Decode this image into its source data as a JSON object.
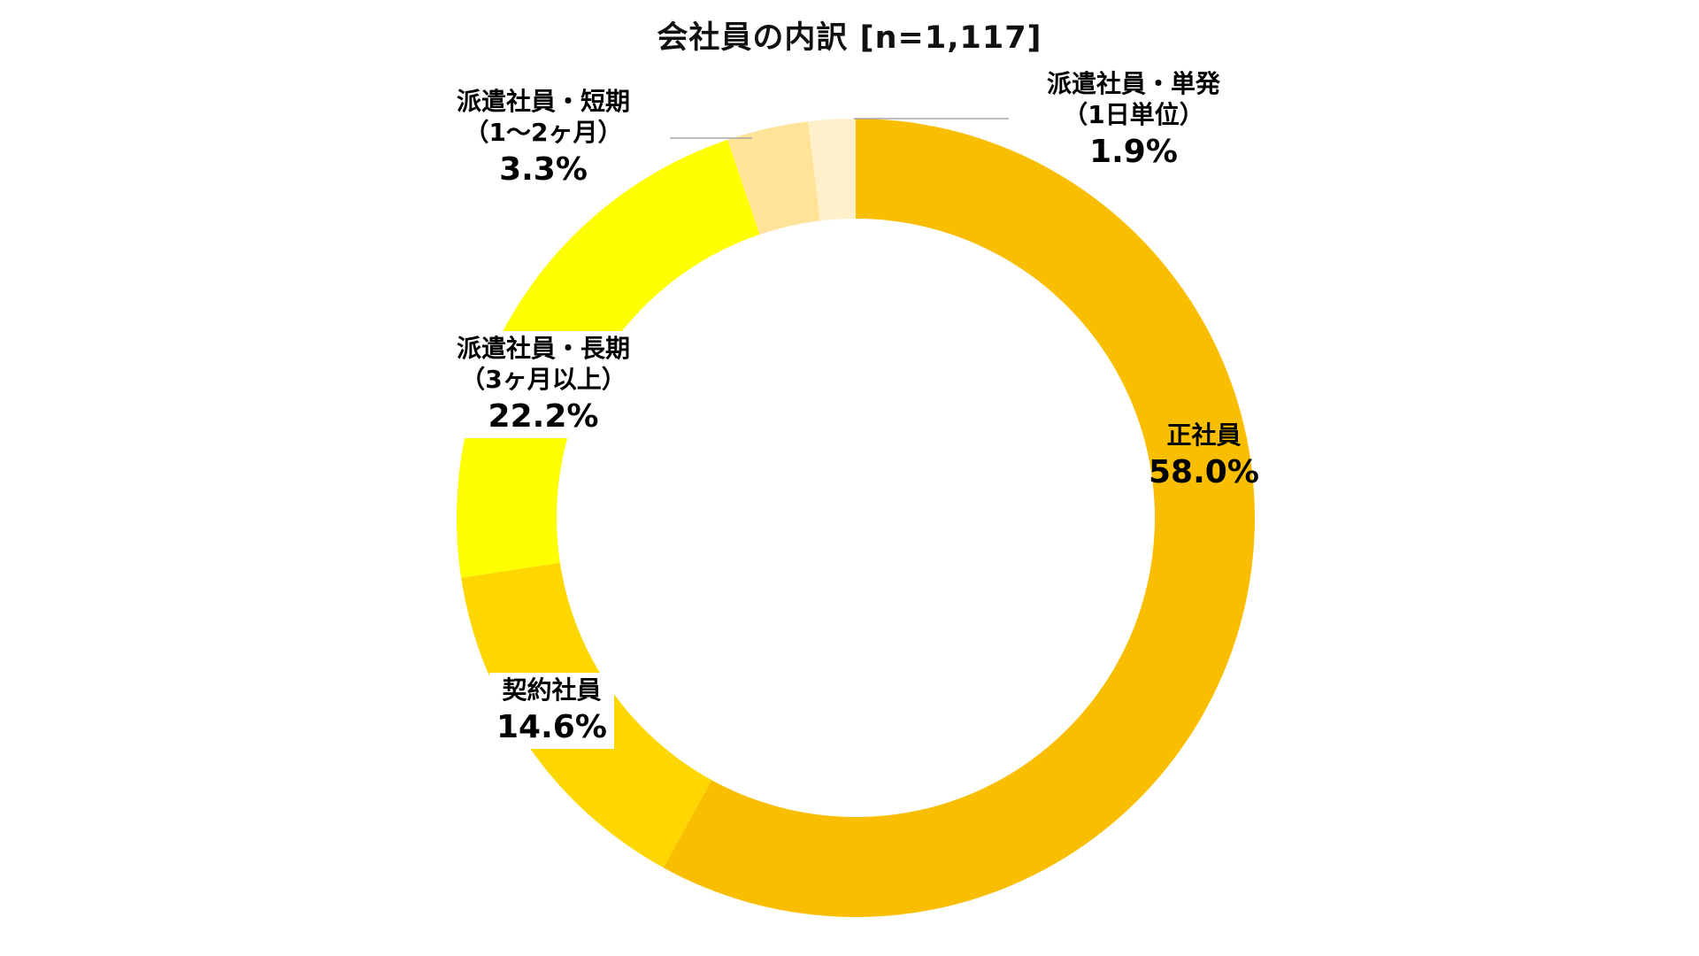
{
  "chart_data": {
    "type": "pie",
    "donut": true,
    "title": "会社員の内訳 [n=1,117]",
    "legend": "none",
    "slices": [
      {
        "label_lines": [
          "正社員"
        ],
        "value": 58.0,
        "value_text": "58.0%",
        "color": "#F9BE00"
      },
      {
        "label_lines": [
          "契約社員"
        ],
        "value": 14.6,
        "value_text": "14.6%",
        "color": "#FFD700"
      },
      {
        "label_lines": [
          "派遣社員・長期",
          "（3ヶ月以上）"
        ],
        "value": 22.2,
        "value_text": "22.2%",
        "color": "#FFFF00"
      },
      {
        "label_lines": [
          "派遣社員・短期",
          "（1〜2ヶ月）"
        ],
        "value": 3.3,
        "value_text": "3.3%",
        "color": "#FFE399"
      },
      {
        "label_lines": [
          "派遣社員・単発",
          "（1日単位）"
        ],
        "value": 1.9,
        "value_text": "1.9%",
        "color": "#FFF0CC"
      }
    ]
  }
}
